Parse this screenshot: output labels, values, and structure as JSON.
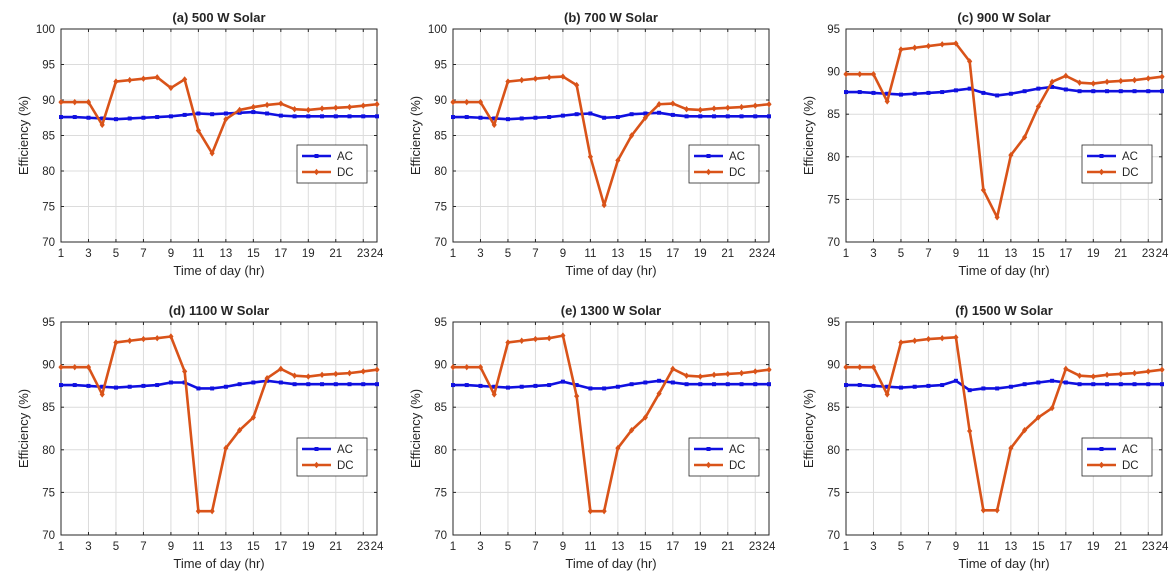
{
  "colors": {
    "ac": "#1010e0",
    "dc": "#d95319",
    "grid": "#dcdcdc",
    "axis": "#262626"
  },
  "chart_data": [
    {
      "type": "line",
      "title": "(a) 500 W Solar",
      "xlabel": "Time of day (hr)",
      "ylabel": "Efficiency (%)",
      "xlim": [
        1,
        24
      ],
      "ylim": [
        70,
        100
      ],
      "xticks": [
        1,
        3,
        5,
        7,
        9,
        11,
        13,
        15,
        17,
        19,
        21,
        23,
        24
      ],
      "yticks": [
        70,
        75,
        80,
        85,
        90,
        95,
        100
      ],
      "grid": true,
      "legend": "right-middle",
      "x": [
        1,
        2,
        3,
        4,
        5,
        6,
        7,
        8,
        9,
        10,
        11,
        12,
        13,
        14,
        15,
        16,
        17,
        18,
        19,
        20,
        21,
        22,
        23,
        24
      ],
      "series": [
        {
          "name": "AC",
          "values": [
            87.6,
            87.6,
            87.5,
            87.4,
            87.3,
            87.4,
            87.5,
            87.6,
            87.7,
            87.9,
            88.1,
            88.0,
            88.1,
            88.2,
            88.3,
            88.1,
            87.8,
            87.7,
            87.7,
            87.7,
            87.7,
            87.7,
            87.7,
            87.7
          ]
        },
        {
          "name": "DC",
          "values": [
            89.7,
            89.7,
            89.7,
            86.5,
            92.6,
            92.8,
            93.0,
            93.2,
            91.7,
            92.9,
            85.7,
            82.5,
            87.3,
            88.6,
            89.0,
            89.3,
            89.5,
            88.7,
            88.6,
            88.8,
            88.9,
            89.0,
            89.2,
            89.4
          ]
        }
      ]
    },
    {
      "type": "line",
      "title": "(b) 700 W Solar",
      "xlabel": "Time of day (hr)",
      "ylabel": "Efficiency (%)",
      "xlim": [
        1,
        24
      ],
      "ylim": [
        70,
        100
      ],
      "xticks": [
        1,
        3,
        5,
        7,
        9,
        11,
        13,
        15,
        17,
        19,
        21,
        23,
        24
      ],
      "yticks": [
        70,
        75,
        80,
        85,
        90,
        95,
        100
      ],
      "grid": true,
      "legend": "right-middle",
      "x": [
        1,
        2,
        3,
        4,
        5,
        6,
        7,
        8,
        9,
        10,
        11,
        12,
        13,
        14,
        15,
        16,
        17,
        18,
        19,
        20,
        21,
        22,
        23,
        24
      ],
      "series": [
        {
          "name": "AC",
          "values": [
            87.6,
            87.6,
            87.5,
            87.4,
            87.3,
            87.4,
            87.5,
            87.6,
            87.8,
            88.0,
            88.1,
            87.5,
            87.6,
            88.0,
            88.1,
            88.2,
            87.9,
            87.7,
            87.7,
            87.7,
            87.7,
            87.7,
            87.7,
            87.7
          ]
        },
        {
          "name": "DC",
          "values": [
            89.7,
            89.7,
            89.7,
            86.5,
            92.6,
            92.8,
            93.0,
            93.2,
            93.3,
            92.1,
            82.0,
            75.2,
            81.5,
            85.0,
            87.5,
            89.4,
            89.5,
            88.7,
            88.6,
            88.8,
            88.9,
            89.0,
            89.2,
            89.4
          ]
        }
      ]
    },
    {
      "type": "line",
      "title": "(c) 900 W Solar",
      "xlabel": "Time of day (hr)",
      "ylabel": "Efficiency (%)",
      "xlim": [
        1,
        24
      ],
      "ylim": [
        70,
        95
      ],
      "xticks": [
        1,
        3,
        5,
        7,
        9,
        11,
        13,
        15,
        17,
        19,
        21,
        23,
        24
      ],
      "yticks": [
        70,
        75,
        80,
        85,
        90,
        95
      ],
      "grid": true,
      "legend": "right-middle",
      "x": [
        1,
        2,
        3,
        4,
        5,
        6,
        7,
        8,
        9,
        10,
        11,
        12,
        13,
        14,
        15,
        16,
        17,
        18,
        19,
        20,
        21,
        22,
        23,
        24
      ],
      "series": [
        {
          "name": "AC",
          "values": [
            87.6,
            87.6,
            87.5,
            87.4,
            87.3,
            87.4,
            87.5,
            87.6,
            87.8,
            88.0,
            87.5,
            87.2,
            87.4,
            87.7,
            88.0,
            88.2,
            87.9,
            87.7,
            87.7,
            87.7,
            87.7,
            87.7,
            87.7,
            87.7
          ]
        },
        {
          "name": "DC",
          "values": [
            89.7,
            89.7,
            89.7,
            86.5,
            92.6,
            92.8,
            93.0,
            93.2,
            93.3,
            91.2,
            76.1,
            72.9,
            80.2,
            82.3,
            85.9,
            88.8,
            89.5,
            88.7,
            88.6,
            88.8,
            88.9,
            89.0,
            89.2,
            89.4
          ]
        }
      ]
    },
    {
      "type": "line",
      "title": "(d) 1100 W Solar",
      "xlabel": "Time of day (hr)",
      "ylabel": "Efficiency (%)",
      "xlim": [
        1,
        24
      ],
      "ylim": [
        70,
        95
      ],
      "xticks": [
        1,
        3,
        5,
        7,
        9,
        11,
        13,
        15,
        17,
        19,
        21,
        23,
        24
      ],
      "yticks": [
        70,
        75,
        80,
        85,
        90,
        95
      ],
      "grid": true,
      "legend": "right-middle",
      "x": [
        1,
        2,
        3,
        4,
        5,
        6,
        7,
        8,
        9,
        10,
        11,
        12,
        13,
        14,
        15,
        16,
        17,
        18,
        19,
        20,
        21,
        22,
        23,
        24
      ],
      "series": [
        {
          "name": "AC",
          "values": [
            87.6,
            87.6,
            87.5,
            87.4,
            87.3,
            87.4,
            87.5,
            87.6,
            87.9,
            87.9,
            87.2,
            87.2,
            87.4,
            87.7,
            87.9,
            88.1,
            87.9,
            87.7,
            87.7,
            87.7,
            87.7,
            87.7,
            87.7,
            87.7
          ]
        },
        {
          "name": "DC",
          "values": [
            89.7,
            89.7,
            89.7,
            86.5,
            92.6,
            92.8,
            93.0,
            93.1,
            93.3,
            89.2,
            72.8,
            72.8,
            80.2,
            82.3,
            83.8,
            88.4,
            89.5,
            88.7,
            88.6,
            88.8,
            88.9,
            89.0,
            89.2,
            89.4
          ]
        }
      ]
    },
    {
      "type": "line",
      "title": "(e) 1300 W Solar",
      "xlabel": "Time of day (hr)",
      "ylabel": "Efficiency (%)",
      "xlim": [
        1,
        24
      ],
      "ylim": [
        70,
        95
      ],
      "xticks": [
        1,
        3,
        5,
        7,
        9,
        11,
        13,
        15,
        17,
        19,
        21,
        23,
        24
      ],
      "yticks": [
        70,
        75,
        80,
        85,
        90,
        95
      ],
      "grid": true,
      "legend": "right-middle",
      "x": [
        1,
        2,
        3,
        4,
        5,
        6,
        7,
        8,
        9,
        10,
        11,
        12,
        13,
        14,
        15,
        16,
        17,
        18,
        19,
        20,
        21,
        22,
        23,
        24
      ],
      "series": [
        {
          "name": "AC",
          "values": [
            87.6,
            87.6,
            87.5,
            87.4,
            87.3,
            87.4,
            87.5,
            87.6,
            88.0,
            87.6,
            87.2,
            87.2,
            87.4,
            87.7,
            87.9,
            88.1,
            87.9,
            87.7,
            87.7,
            87.7,
            87.7,
            87.7,
            87.7,
            87.7
          ]
        },
        {
          "name": "DC",
          "values": [
            89.7,
            89.7,
            89.7,
            86.5,
            92.6,
            92.8,
            93.0,
            93.1,
            93.4,
            86.3,
            72.8,
            72.8,
            80.2,
            82.3,
            83.8,
            86.6,
            89.5,
            88.7,
            88.6,
            88.8,
            88.9,
            89.0,
            89.2,
            89.4
          ]
        }
      ]
    },
    {
      "type": "line",
      "title": "(f) 1500 W Solar",
      "xlabel": "Time of day (hr)",
      "ylabel": "Efficiency (%)",
      "xlim": [
        1,
        24
      ],
      "ylim": [
        70,
        95
      ],
      "xticks": [
        1,
        3,
        5,
        7,
        9,
        11,
        13,
        15,
        17,
        19,
        21,
        23,
        24
      ],
      "yticks": [
        70,
        75,
        80,
        85,
        90,
        95
      ],
      "grid": true,
      "legend": "right-middle",
      "x": [
        1,
        2,
        3,
        4,
        5,
        6,
        7,
        8,
        9,
        10,
        11,
        12,
        13,
        14,
        15,
        16,
        17,
        18,
        19,
        20,
        21,
        22,
        23,
        24
      ],
      "series": [
        {
          "name": "AC",
          "values": [
            87.6,
            87.6,
            87.5,
            87.4,
            87.3,
            87.4,
            87.5,
            87.6,
            88.1,
            87.0,
            87.2,
            87.2,
            87.4,
            87.7,
            87.9,
            88.1,
            87.9,
            87.7,
            87.7,
            87.7,
            87.7,
            87.7,
            87.7,
            87.7
          ]
        },
        {
          "name": "DC",
          "values": [
            89.7,
            89.7,
            89.7,
            86.5,
            92.6,
            92.8,
            93.0,
            93.1,
            93.2,
            82.2,
            72.9,
            72.9,
            80.2,
            82.3,
            83.8,
            84.9,
            89.5,
            88.7,
            88.6,
            88.8,
            88.9,
            89.0,
            89.2,
            89.4
          ]
        }
      ]
    }
  ]
}
